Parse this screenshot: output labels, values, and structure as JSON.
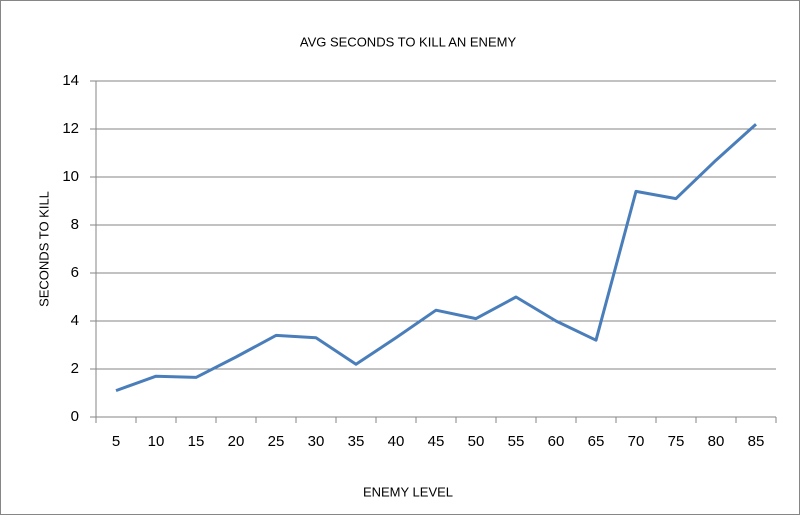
{
  "chart_data": {
    "type": "line",
    "title": "AVG SECONDS TO KILL AN ENEMY",
    "x_label": "ENEMY LEVEL",
    "y_label": "SECONDS TO KILL",
    "categories": [
      "5",
      "10",
      "15",
      "20",
      "25",
      "30",
      "35",
      "40",
      "45",
      "50",
      "55",
      "60",
      "65",
      "70",
      "75",
      "80",
      "85"
    ],
    "values": [
      1.1,
      1.7,
      1.65,
      2.5,
      3.4,
      3.3,
      2.2,
      3.3,
      4.45,
      4.1,
      5.0,
      4.0,
      3.2,
      9.4,
      9.1,
      10.7,
      12.2
    ],
    "color": "#4a7ebb",
    "ylim": [
      0,
      14
    ],
    "yticks": [
      0,
      2,
      4,
      6,
      8,
      10,
      12,
      14
    ],
    "grid": true
  }
}
